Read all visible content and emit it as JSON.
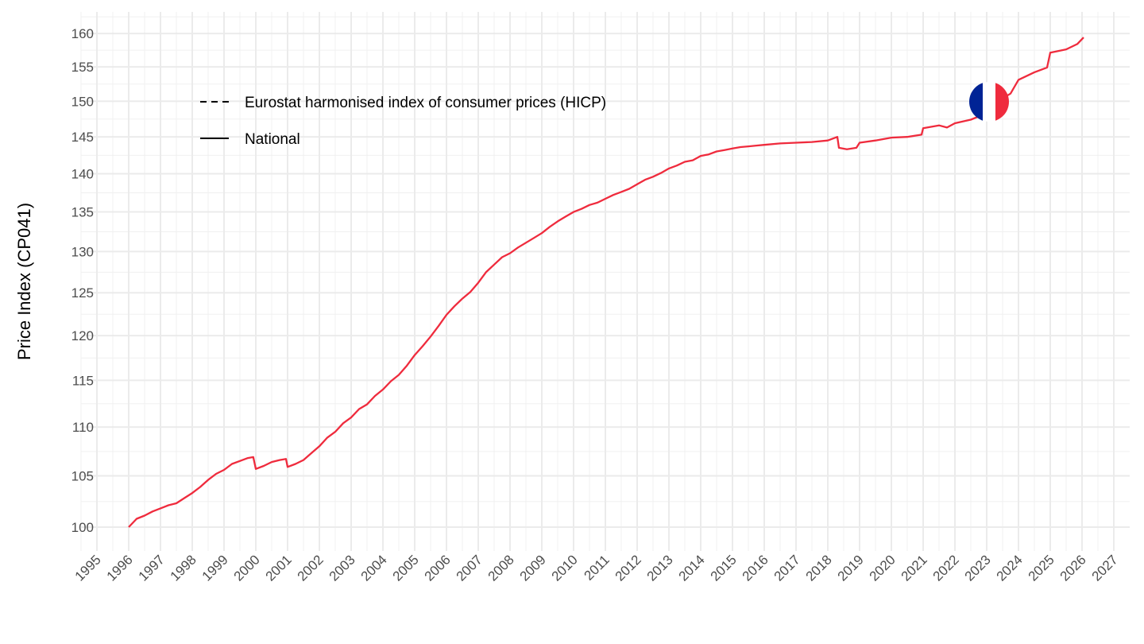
{
  "chart_data": {
    "type": "line",
    "title": "",
    "xlabel": "",
    "ylabel": "Price Index (CP041)",
    "y_scale": "log",
    "ylim": [
      98,
      162
    ],
    "xlim": [
      1994.5,
      2027.5
    ],
    "grid": true,
    "y_ticks": [
      100,
      105,
      110,
      115,
      120,
      125,
      130,
      135,
      140,
      145,
      150,
      155,
      160
    ],
    "x_ticks": [
      1995,
      1996,
      1997,
      1998,
      1999,
      2000,
      2001,
      2002,
      2003,
      2004,
      2005,
      2006,
      2007,
      2008,
      2009,
      2010,
      2011,
      2012,
      2013,
      2014,
      2015,
      2016,
      2017,
      2018,
      2019,
      2020,
      2021,
      2022,
      2023,
      2024,
      2025,
      2026,
      2027
    ],
    "legend": {
      "placement": "top-left",
      "entries": [
        {
          "label": "Eurostat harmonised index of consumer prices (HICP)",
          "linetype": "dashed"
        },
        {
          "label": "National",
          "linetype": "solid"
        }
      ]
    },
    "flag": "France",
    "colors": {
      "line": "#ef2b3d",
      "flag_blue": "#002395",
      "flag_white": "#ffffff",
      "flag_red": "#ef2b3d"
    },
    "series": [
      {
        "name": "National",
        "x": [
          1996.0,
          1996.25,
          1996.5,
          1996.75,
          1997.0,
          1997.25,
          1997.5,
          1997.75,
          1998.0,
          1998.25,
          1998.5,
          1998.75,
          1999.0,
          1999.25,
          1999.5,
          1999.75,
          1999.92,
          2000.0,
          2000.25,
          2000.5,
          2000.75,
          2000.95,
          2001.0,
          2001.25,
          2001.5,
          2001.75,
          2002.0,
          2002.25,
          2002.5,
          2002.75,
          2003.0,
          2003.25,
          2003.5,
          2003.75,
          2004.0,
          2004.25,
          2004.5,
          2004.75,
          2005.0,
          2005.25,
          2005.5,
          2005.75,
          2006.0,
          2006.25,
          2006.5,
          2006.75,
          2007.0,
          2007.25,
          2007.5,
          2007.75,
          2008.0,
          2008.25,
          2008.5,
          2008.75,
          2009.0,
          2009.25,
          2009.5,
          2009.75,
          2010.0,
          2010.25,
          2010.5,
          2010.75,
          2011.0,
          2011.25,
          2011.5,
          2011.75,
          2012.0,
          2012.25,
          2012.5,
          2012.75,
          2013.0,
          2013.25,
          2013.5,
          2013.75,
          2014.0,
          2014.25,
          2014.5,
          2014.75,
          2015.0,
          2015.25,
          2015.5,
          2015.75,
          2016.0,
          2016.5,
          2017.0,
          2017.5,
          2018.0,
          2018.3,
          2018.35,
          2018.6,
          2018.9,
          2019.0,
          2019.5,
          2020.0,
          2020.5,
          2020.95,
          2021.0,
          2021.5,
          2021.75,
          2022.0,
          2022.5,
          2023.0,
          2023.5,
          2023.75,
          2024.0,
          2024.5,
          2024.9,
          2025.0,
          2025.5,
          2025.85,
          2026.05
        ],
        "y": [
          100.0,
          100.8,
          101.1,
          101.5,
          101.8,
          102.1,
          102.3,
          102.8,
          103.3,
          103.9,
          104.6,
          105.2,
          105.6,
          106.2,
          106.5,
          106.8,
          106.9,
          105.7,
          106.0,
          106.4,
          106.6,
          106.7,
          105.9,
          106.2,
          106.6,
          107.3,
          108.0,
          108.9,
          109.5,
          110.4,
          111.0,
          111.9,
          112.4,
          113.3,
          114.0,
          114.9,
          115.6,
          116.6,
          117.8,
          118.8,
          119.9,
          121.1,
          122.4,
          123.4,
          124.3,
          125.1,
          126.2,
          127.5,
          128.4,
          129.3,
          129.8,
          130.5,
          131.1,
          131.7,
          132.3,
          133.1,
          133.8,
          134.4,
          135.0,
          135.4,
          135.9,
          136.2,
          136.7,
          137.2,
          137.6,
          138.0,
          138.6,
          139.2,
          139.6,
          140.1,
          140.7,
          141.1,
          141.6,
          141.8,
          142.4,
          142.6,
          143.0,
          143.2,
          143.4,
          143.6,
          143.7,
          143.8,
          143.9,
          144.1,
          144.2,
          144.3,
          144.5,
          145.0,
          143.5,
          143.3,
          143.5,
          144.2,
          144.5,
          144.9,
          145.0,
          145.3,
          146.2,
          146.6,
          146.3,
          146.9,
          147.4,
          148.3,
          150.4,
          151.1,
          153.1,
          154.2,
          154.9,
          157.1,
          157.6,
          158.4,
          159.4
        ]
      }
    ]
  }
}
